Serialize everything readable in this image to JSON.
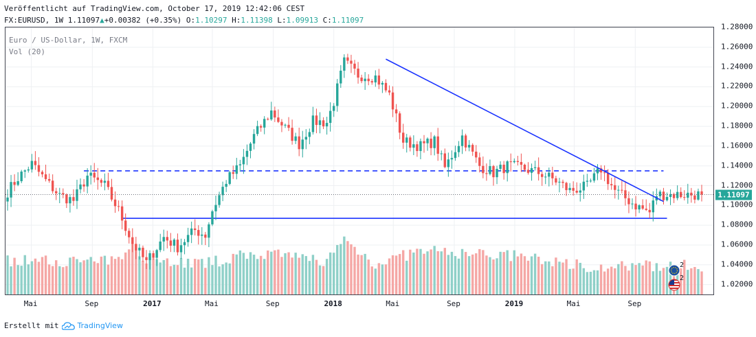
{
  "header": {
    "published": "Veröffentlicht auf TradingView.com, October 17, 2019 12:42:06 CEST",
    "symbol": "FX:EURUSD, 1W",
    "last": "1.11097",
    "change": "+0.00382",
    "change_pct": "(+0.35%)",
    "open_label": "O:",
    "open": "1.10297",
    "high_label": "H:",
    "high": "1.11398",
    "low_label": "L:",
    "low": "1.09913",
    "close_label": "C:",
    "close": "1.11097"
  },
  "legend": {
    "title": "Euro / US-Dollar, 1W, FXCM",
    "vol": "Vol (20)"
  },
  "events": {
    "count1": "2",
    "count2": "2"
  },
  "footer": {
    "created_with": "Erstellt mit",
    "brand": "TradingView"
  },
  "colors": {
    "up": "#26a69a",
    "down": "#ef5350",
    "vol_up": "#8fd0c8",
    "vol_down": "#f5a7a5",
    "trendline": "#1a33ff",
    "price_badge": "#26a69a"
  },
  "chart_data": {
    "type": "candlestick",
    "symbol": "EURUSD",
    "interval": "1W",
    "price_axis": {
      "min": 1.01,
      "max": 1.28,
      "ticks": [
        1.28,
        1.26,
        1.24,
        1.22,
        1.2,
        1.18,
        1.16,
        1.14,
        1.12,
        1.1,
        1.08,
        1.06,
        1.04,
        1.02
      ],
      "tick_labels": [
        "1.28000",
        "1.26000",
        "1.24000",
        "1.22000",
        "1.20000",
        "1.18000",
        "1.16000",
        "1.14000",
        "1.12000",
        "1.10000",
        "1.08000",
        "1.06000",
        "1.04000",
        "1.02000"
      ]
    },
    "time_axis": {
      "start": "2016-03-14",
      "weeks": 201,
      "labels": [
        {
          "text": "Mai",
          "date": "2016-05-01"
        },
        {
          "text": "Sep",
          "date": "2016-09-01"
        },
        {
          "text": "2017",
          "date": "2017-01-01",
          "bold": true
        },
        {
          "text": "Mai",
          "date": "2017-05-01"
        },
        {
          "text": "Sep",
          "date": "2017-09-01"
        },
        {
          "text": "2018",
          "date": "2018-01-01",
          "bold": true
        },
        {
          "text": "Mai",
          "date": "2018-05-01"
        },
        {
          "text": "Sep",
          "date": "2018-09-01"
        },
        {
          "text": "2019",
          "date": "2019-01-01",
          "bold": true
        },
        {
          "text": "Mai",
          "date": "2019-05-01"
        },
        {
          "text": "Sep",
          "date": "2019-09-01"
        }
      ]
    },
    "close_anchors": [
      {
        "date": "2016-03-14",
        "close": 1.114
      },
      {
        "date": "2016-04-04",
        "close": 1.128
      },
      {
        "date": "2016-05-02",
        "close": 1.142
      },
      {
        "date": "2016-05-30",
        "close": 1.125
      },
      {
        "date": "2016-06-27",
        "close": 1.11
      },
      {
        "date": "2016-07-25",
        "close": 1.105
      },
      {
        "date": "2016-08-22",
        "close": 1.13
      },
      {
        "date": "2016-09-26",
        "close": 1.12
      },
      {
        "date": "2016-10-24",
        "close": 1.095
      },
      {
        "date": "2016-11-21",
        "close": 1.062
      },
      {
        "date": "2016-12-19",
        "close": 1.042
      },
      {
        "date": "2017-01-23",
        "close": 1.068
      },
      {
        "date": "2017-02-20",
        "close": 1.058
      },
      {
        "date": "2017-03-27",
        "close": 1.075
      },
      {
        "date": "2017-04-17",
        "close": 1.07
      },
      {
        "date": "2017-05-01",
        "close": 1.095
      },
      {
        "date": "2017-05-29",
        "close": 1.125
      },
      {
        "date": "2017-06-26",
        "close": 1.14
      },
      {
        "date": "2017-07-24",
        "close": 1.17
      },
      {
        "date": "2017-08-28",
        "close": 1.195
      },
      {
        "date": "2017-09-25",
        "close": 1.178
      },
      {
        "date": "2017-10-23",
        "close": 1.162
      },
      {
        "date": "2017-11-20",
        "close": 1.185
      },
      {
        "date": "2017-12-18",
        "close": 1.184
      },
      {
        "date": "2018-01-01",
        "close": 1.205
      },
      {
        "date": "2018-01-22",
        "close": 1.245
      },
      {
        "date": "2018-02-19",
        "close": 1.232
      },
      {
        "date": "2018-03-26",
        "close": 1.23
      },
      {
        "date": "2018-04-23",
        "close": 1.212
      },
      {
        "date": "2018-05-21",
        "close": 1.165
      },
      {
        "date": "2018-06-25",
        "close": 1.16
      },
      {
        "date": "2018-07-23",
        "close": 1.165
      },
      {
        "date": "2018-08-13",
        "close": 1.138
      },
      {
        "date": "2018-09-17",
        "close": 1.17
      },
      {
        "date": "2018-10-22",
        "close": 1.14
      },
      {
        "date": "2018-11-19",
        "close": 1.133
      },
      {
        "date": "2018-12-17",
        "close": 1.14
      },
      {
        "date": "2019-01-14",
        "close": 1.138
      },
      {
        "date": "2019-02-25",
        "close": 1.132
      },
      {
        "date": "2019-03-25",
        "close": 1.125
      },
      {
        "date": "2019-04-22",
        "close": 1.115
      },
      {
        "date": "2019-05-27",
        "close": 1.119
      },
      {
        "date": "2019-06-24",
        "close": 1.137
      },
      {
        "date": "2019-07-22",
        "close": 1.115
      },
      {
        "date": "2019-08-19",
        "close": 1.105
      },
      {
        "date": "2019-09-02",
        "close": 1.1
      },
      {
        "date": "2019-09-30",
        "close": 1.093
      },
      {
        "date": "2019-10-14",
        "close": 1.11097
      }
    ],
    "horizontal_lines": [
      {
        "price": 1.135,
        "style": "dashed"
      },
      {
        "price": 1.087,
        "style": "solid"
      }
    ],
    "trendline": [
      {
        "date": "2018-04-16",
        "price": 1.248
      },
      {
        "date": "2019-10-28",
        "price": 1.104
      }
    ],
    "last_price": 1.11097,
    "last_price_label": "1.11097",
    "volume": {
      "name": "Vol (20)",
      "relative_profile": [
        {
          "date": "2016-03-14",
          "level": 0.33
        },
        {
          "date": "2016-10-24",
          "level": 0.32
        },
        {
          "date": "2016-11-21",
          "level": 0.52
        },
        {
          "date": "2016-12-19",
          "level": 0.34
        },
        {
          "date": "2017-04-17",
          "level": 0.3
        },
        {
          "date": "2017-07-24",
          "level": 0.4
        },
        {
          "date": "2017-12-18",
          "level": 0.33
        },
        {
          "date": "2018-01-22",
          "level": 0.53
        },
        {
          "date": "2018-03-26",
          "level": 0.3
        },
        {
          "date": "2018-06-25",
          "level": 0.42
        },
        {
          "date": "2018-12-17",
          "level": 0.38
        },
        {
          "date": "2019-06-24",
          "level": 0.26
        },
        {
          "date": "2019-10-14",
          "level": 0.28
        }
      ]
    }
  }
}
